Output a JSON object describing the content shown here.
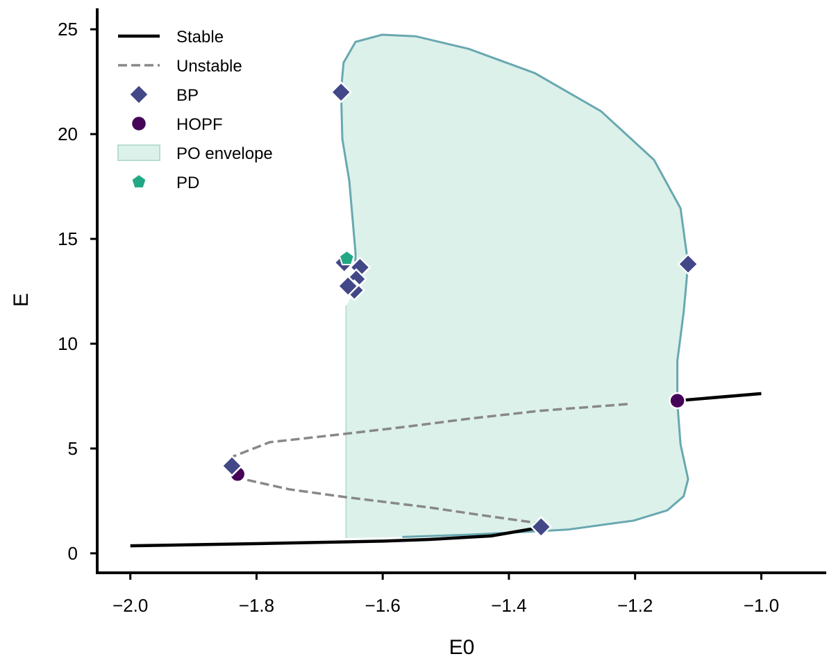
{
  "chart_data": {
    "type": "line",
    "title": "",
    "xlabel": "E0",
    "ylabel": "E",
    "xlim": [
      -2.0525,
      -0.897
    ],
    "ylim": [
      -0.93,
      26.0
    ],
    "xticks": [
      -2.0,
      -1.8,
      -1.6,
      -1.4,
      -1.2,
      -1.0
    ],
    "xtick_labels": [
      "−2.0",
      "−1.8",
      "−1.6",
      "−1.4",
      "−1.2",
      "−1.0"
    ],
    "yticks": [
      0,
      5,
      10,
      15,
      20,
      25
    ],
    "ytick_labels": [
      "0",
      "5",
      "10",
      "15",
      "20",
      "25"
    ],
    "grid": false,
    "legend_position": "top-left",
    "legend": [
      {
        "label": "Stable",
        "kind": "solid-line"
      },
      {
        "label": "Unstable",
        "kind": "dashed-line"
      },
      {
        "label": "BP",
        "kind": "diamond"
      },
      {
        "label": "HOPF",
        "kind": "circle"
      },
      {
        "label": "PO envelope",
        "kind": "patch"
      },
      {
        "label": "PD",
        "kind": "pentagon"
      }
    ],
    "colors": {
      "stable": "#000000",
      "unstable": "#888888",
      "bp": "#424788",
      "hopf": "#450457",
      "po_fill": "#dcf1ea",
      "po_edge": "#68a8b0",
      "pd": "#22a884"
    },
    "series": [
      {
        "name": "Stable",
        "segments": [
          [
            [
              -2.0,
              0.36
            ],
            [
              -1.8,
              0.46
            ],
            [
              -1.6,
              0.58
            ],
            [
              -1.527,
              0.66
            ],
            [
              -1.428,
              0.83
            ],
            [
              -1.351,
              1.23
            ]
          ],
          [
            [
              -1.133,
              7.28
            ],
            [
              -1.0,
              7.62
            ]
          ]
        ]
      },
      {
        "name": "Unstable",
        "segments": [
          [
            [
              -1.212,
              7.12
            ],
            [
              -1.35,
              6.8
            ],
            [
              -1.464,
              6.42
            ],
            [
              -1.56,
              6.05
            ],
            [
              -1.659,
              5.7
            ],
            [
              -1.779,
              5.3
            ],
            [
              -1.839,
              4.6
            ],
            [
              -1.845,
              4.17
            ],
            [
              -1.83,
              3.6
            ],
            [
              -1.748,
              3.05
            ],
            [
              -1.659,
              2.68
            ],
            [
              -1.527,
              2.19
            ],
            [
              -1.45,
              1.85
            ],
            [
              -1.359,
              1.46
            ]
          ]
        ]
      },
      {
        "name": "PO envelope",
        "polygon": [
          [
            -1.658,
            0.73
          ],
          [
            -1.658,
            11.82
          ],
          [
            -1.645,
            12.48
          ],
          [
            -1.643,
            14.3
          ],
          [
            -1.653,
            17.78
          ],
          [
            -1.664,
            19.77
          ],
          [
            -1.666,
            22.09
          ],
          [
            -1.662,
            23.41
          ],
          [
            -1.643,
            24.4
          ],
          [
            -1.601,
            24.74
          ],
          [
            -1.548,
            24.67
          ],
          [
            -1.464,
            24.07
          ],
          [
            -1.359,
            22.91
          ],
          [
            -1.254,
            21.09
          ],
          [
            -1.17,
            18.77
          ],
          [
            -1.128,
            16.46
          ],
          [
            -1.116,
            13.81
          ],
          [
            -1.123,
            11.5
          ],
          [
            -1.133,
            9.17
          ],
          [
            -1.133,
            7.19
          ],
          [
            -1.128,
            5.2
          ],
          [
            -1.116,
            3.54
          ],
          [
            -1.123,
            2.72
          ],
          [
            -1.149,
            2.05
          ],
          [
            -1.202,
            1.56
          ],
          [
            -1.307,
            1.13
          ],
          [
            -1.349,
            1.06
          ],
          [
            -1.464,
            0.89
          ],
          [
            -1.569,
            0.78
          ],
          [
            -1.658,
            0.73
          ]
        ]
      }
    ],
    "points": {
      "BP": [
        [
          -1.666,
          22.0
        ],
        [
          -1.116,
          13.8
        ],
        [
          -1.839,
          4.17
        ],
        [
          -1.349,
          1.26
        ],
        [
          -1.636,
          13.64
        ],
        [
          -1.642,
          13.08
        ],
        [
          -1.645,
          12.55
        ],
        [
          -1.661,
          13.87
        ],
        [
          -1.655,
          12.75
        ]
      ],
      "HOPF": [
        [
          -1.133,
          7.28
        ],
        [
          -1.83,
          3.78
        ]
      ],
      "PD": [
        [
          -1.657,
          14.07
        ]
      ]
    }
  }
}
